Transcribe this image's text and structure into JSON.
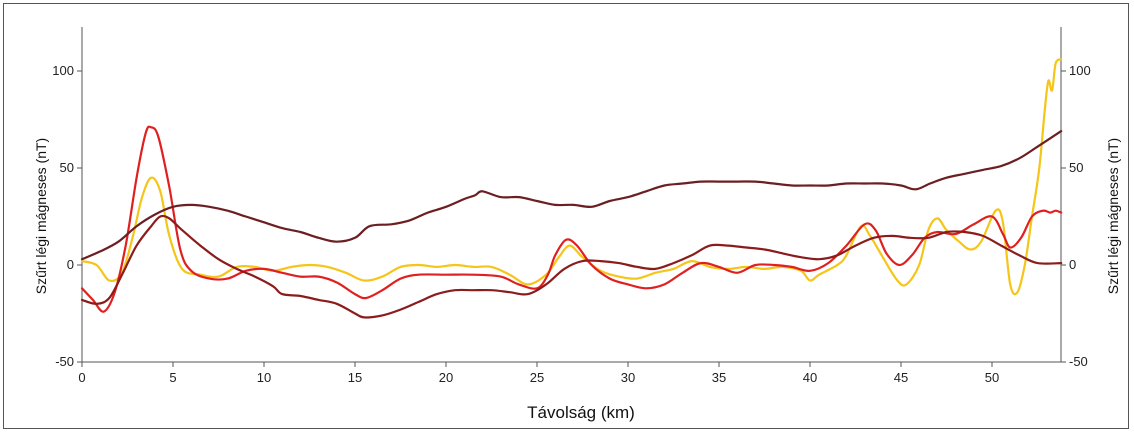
{
  "chart_data": {
    "type": "line",
    "title": "",
    "xlabel": "Távolság (km)",
    "ylabel": "Szűrt légi mágneses (nT)",
    "ylabel_right": "Szűrt légi mágneses (nT)",
    "xlim": [
      0,
      53.8
    ],
    "ylim": [
      -50,
      125
    ],
    "x_ticks": [
      0,
      5,
      10,
      15,
      20,
      25,
      30,
      35,
      40,
      45,
      50
    ],
    "y_ticks": [
      -50,
      0,
      50,
      100
    ],
    "grid": false,
    "series": [
      {
        "color": "#f5c518",
        "points": [
          [
            0,
            2
          ],
          [
            0.8,
            0
          ],
          [
            1.5,
            -8
          ],
          [
            2.2,
            -4
          ],
          [
            2.8,
            15
          ],
          [
            3.3,
            35
          ],
          [
            3.8,
            45
          ],
          [
            4.3,
            38
          ],
          [
            4.8,
            15
          ],
          [
            5.5,
            -2
          ],
          [
            6.5,
            -5
          ],
          [
            7.5,
            -6
          ],
          [
            8.5,
            -1
          ],
          [
            9.5,
            -1
          ],
          [
            10.5,
            -3
          ],
          [
            11.5,
            -1
          ],
          [
            12.5,
            0
          ],
          [
            13.5,
            -1
          ],
          [
            14.5,
            -4
          ],
          [
            15.5,
            -8
          ],
          [
            16.5,
            -6
          ],
          [
            17.5,
            -1
          ],
          [
            18.5,
            0
          ],
          [
            19.5,
            -1
          ],
          [
            20.5,
            0
          ],
          [
            21.5,
            -1
          ],
          [
            22.5,
            -1
          ],
          [
            23.5,
            -5
          ],
          [
            24.5,
            -10
          ],
          [
            25.5,
            -5
          ],
          [
            26.2,
            4
          ],
          [
            26.8,
            10
          ],
          [
            27.5,
            4
          ],
          [
            28.5,
            -3
          ],
          [
            29.5,
            -6
          ],
          [
            30.5,
            -7
          ],
          [
            31.5,
            -4
          ],
          [
            32.5,
            -2
          ],
          [
            33.5,
            2
          ],
          [
            34.5,
            -1
          ],
          [
            35.5,
            -2
          ],
          [
            36.5,
            -1
          ],
          [
            37.5,
            -2
          ],
          [
            38.5,
            -1
          ],
          [
            39.5,
            -3
          ],
          [
            40,
            -8
          ],
          [
            40.5,
            -5
          ],
          [
            41.5,
            0
          ],
          [
            42,
            5
          ],
          [
            42.8,
            20
          ],
          [
            43.3,
            15
          ],
          [
            44,
            4
          ],
          [
            44.8,
            -8
          ],
          [
            45.3,
            -10
          ],
          [
            46,
            0
          ],
          [
            46.5,
            18
          ],
          [
            47,
            24
          ],
          [
            47.5,
            18
          ],
          [
            48.2,
            12
          ],
          [
            48.8,
            8
          ],
          [
            49.4,
            12
          ],
          [
            50.2,
            28
          ],
          [
            50.6,
            22
          ],
          [
            51,
            -10
          ],
          [
            51.4,
            -14
          ],
          [
            51.8,
            0
          ],
          [
            52.2,
            25
          ],
          [
            52.6,
            50
          ],
          [
            52.9,
            80
          ],
          [
            53.1,
            95
          ],
          [
            53.3,
            90
          ],
          [
            53.5,
            104
          ],
          [
            53.8,
            106
          ]
        ]
      },
      {
        "color": "#e02020",
        "points": [
          [
            0,
            -12
          ],
          [
            0.6,
            -18
          ],
          [
            1.2,
            -24
          ],
          [
            1.8,
            -14
          ],
          [
            2.4,
            10
          ],
          [
            3,
            45
          ],
          [
            3.5,
            68
          ],
          [
            3.8,
            71
          ],
          [
            4.2,
            66
          ],
          [
            4.8,
            40
          ],
          [
            5.4,
            8
          ],
          [
            6,
            -3
          ],
          [
            7,
            -7
          ],
          [
            8,
            -7
          ],
          [
            9,
            -3
          ],
          [
            10,
            -2
          ],
          [
            11,
            -4
          ],
          [
            12,
            -6
          ],
          [
            13,
            -6
          ],
          [
            14,
            -9
          ],
          [
            15,
            -15
          ],
          [
            15.6,
            -17
          ],
          [
            16.5,
            -13
          ],
          [
            17.5,
            -7
          ],
          [
            18.5,
            -5
          ],
          [
            20,
            -5
          ],
          [
            21.5,
            -5
          ],
          [
            23,
            -6
          ],
          [
            24,
            -10
          ],
          [
            25,
            -12
          ],
          [
            25.6,
            -5
          ],
          [
            26,
            5
          ],
          [
            26.6,
            13
          ],
          [
            27.2,
            10
          ],
          [
            28,
            0
          ],
          [
            29,
            -7
          ],
          [
            30,
            -10
          ],
          [
            31,
            -12
          ],
          [
            32,
            -10
          ],
          [
            33,
            -4
          ],
          [
            34,
            1
          ],
          [
            35,
            -1
          ],
          [
            36,
            -4
          ],
          [
            37,
            0
          ],
          [
            38,
            0
          ],
          [
            39,
            -1
          ],
          [
            40,
            -3
          ],
          [
            41,
            1
          ],
          [
            42,
            10
          ],
          [
            43,
            21
          ],
          [
            43.6,
            18
          ],
          [
            44.2,
            6
          ],
          [
            44.9,
            0
          ],
          [
            45.6,
            5
          ],
          [
            46.3,
            14
          ],
          [
            47,
            17
          ],
          [
            48,
            16
          ],
          [
            49,
            21
          ],
          [
            50,
            25
          ],
          [
            50.6,
            16
          ],
          [
            51,
            9
          ],
          [
            51.6,
            14
          ],
          [
            52.2,
            25
          ],
          [
            52.8,
            28
          ],
          [
            53.2,
            27
          ],
          [
            53.5,
            28
          ],
          [
            53.8,
            27
          ]
        ]
      },
      {
        "color": "#6b1f22",
        "points": [
          [
            0,
            3
          ],
          [
            1,
            7
          ],
          [
            2,
            12
          ],
          [
            3,
            20
          ],
          [
            4,
            26
          ],
          [
            5,
            30
          ],
          [
            6,
            31
          ],
          [
            7,
            30
          ],
          [
            8,
            28
          ],
          [
            9,
            25
          ],
          [
            10,
            22
          ],
          [
            11,
            19
          ],
          [
            12,
            17
          ],
          [
            13,
            14
          ],
          [
            14,
            12
          ],
          [
            15,
            14
          ],
          [
            15.8,
            20
          ],
          [
            17,
            21
          ],
          [
            18,
            23
          ],
          [
            19,
            27
          ],
          [
            20,
            30
          ],
          [
            21,
            34
          ],
          [
            21.6,
            36
          ],
          [
            22,
            38
          ],
          [
            23,
            35
          ],
          [
            24,
            35
          ],
          [
            25,
            33
          ],
          [
            26,
            31
          ],
          [
            27,
            31
          ],
          [
            28,
            30
          ],
          [
            29,
            33
          ],
          [
            30,
            35
          ],
          [
            31,
            38
          ],
          [
            32,
            41
          ],
          [
            33,
            42
          ],
          [
            34,
            43
          ],
          [
            35,
            43
          ],
          [
            36,
            43
          ],
          [
            37,
            43
          ],
          [
            38,
            42
          ],
          [
            39,
            41
          ],
          [
            40,
            41
          ],
          [
            41,
            41
          ],
          [
            42,
            42
          ],
          [
            43,
            42
          ],
          [
            44,
            42
          ],
          [
            45,
            41
          ],
          [
            45.8,
            39
          ],
          [
            46.6,
            42
          ],
          [
            47.5,
            45
          ],
          [
            48.5,
            47
          ],
          [
            49.5,
            49
          ],
          [
            50.5,
            51
          ],
          [
            51.5,
            55
          ],
          [
            52.5,
            61
          ],
          [
            53.8,
            69
          ]
        ]
      },
      {
        "color": "#8a1c1c",
        "points": [
          [
            0,
            -18
          ],
          [
            0.8,
            -20
          ],
          [
            1.5,
            -17
          ],
          [
            2.2,
            -5
          ],
          [
            3,
            10
          ],
          [
            3.8,
            20
          ],
          [
            4.3,
            25
          ],
          [
            4.8,
            24
          ],
          [
            5.5,
            18
          ],
          [
            6.5,
            10
          ],
          [
            7.5,
            3
          ],
          [
            8.5,
            -2
          ],
          [
            9.5,
            -6
          ],
          [
            10.5,
            -11
          ],
          [
            11,
            -15
          ],
          [
            12,
            -16
          ],
          [
            13,
            -18
          ],
          [
            14,
            -20
          ],
          [
            15,
            -25
          ],
          [
            15.5,
            -27
          ],
          [
            16.5,
            -26
          ],
          [
            17.5,
            -23
          ],
          [
            18.5,
            -19
          ],
          [
            19.5,
            -15
          ],
          [
            20.5,
            -13
          ],
          [
            21.5,
            -13
          ],
          [
            22.5,
            -13
          ],
          [
            23.5,
            -14
          ],
          [
            24.5,
            -15
          ],
          [
            25.5,
            -10
          ],
          [
            26.5,
            -2
          ],
          [
            27.5,
            2
          ],
          [
            28.5,
            2
          ],
          [
            29.5,
            1
          ],
          [
            30.5,
            -1
          ],
          [
            31.5,
            -2
          ],
          [
            32.5,
            1
          ],
          [
            33.5,
            5
          ],
          [
            34.5,
            10
          ],
          [
            35.5,
            10
          ],
          [
            36.5,
            9
          ],
          [
            37.5,
            8
          ],
          [
            38.5,
            6
          ],
          [
            39.5,
            4
          ],
          [
            40.5,
            3
          ],
          [
            41.5,
            5
          ],
          [
            42.5,
            10
          ],
          [
            43.5,
            14
          ],
          [
            44.5,
            15
          ],
          [
            45.5,
            14
          ],
          [
            46.5,
            14
          ],
          [
            47.5,
            17
          ],
          [
            48.5,
            17
          ],
          [
            49.5,
            15
          ],
          [
            50.5,
            10
          ],
          [
            51.5,
            5
          ],
          [
            52.5,
            1
          ],
          [
            53.8,
            1
          ]
        ]
      }
    ]
  }
}
